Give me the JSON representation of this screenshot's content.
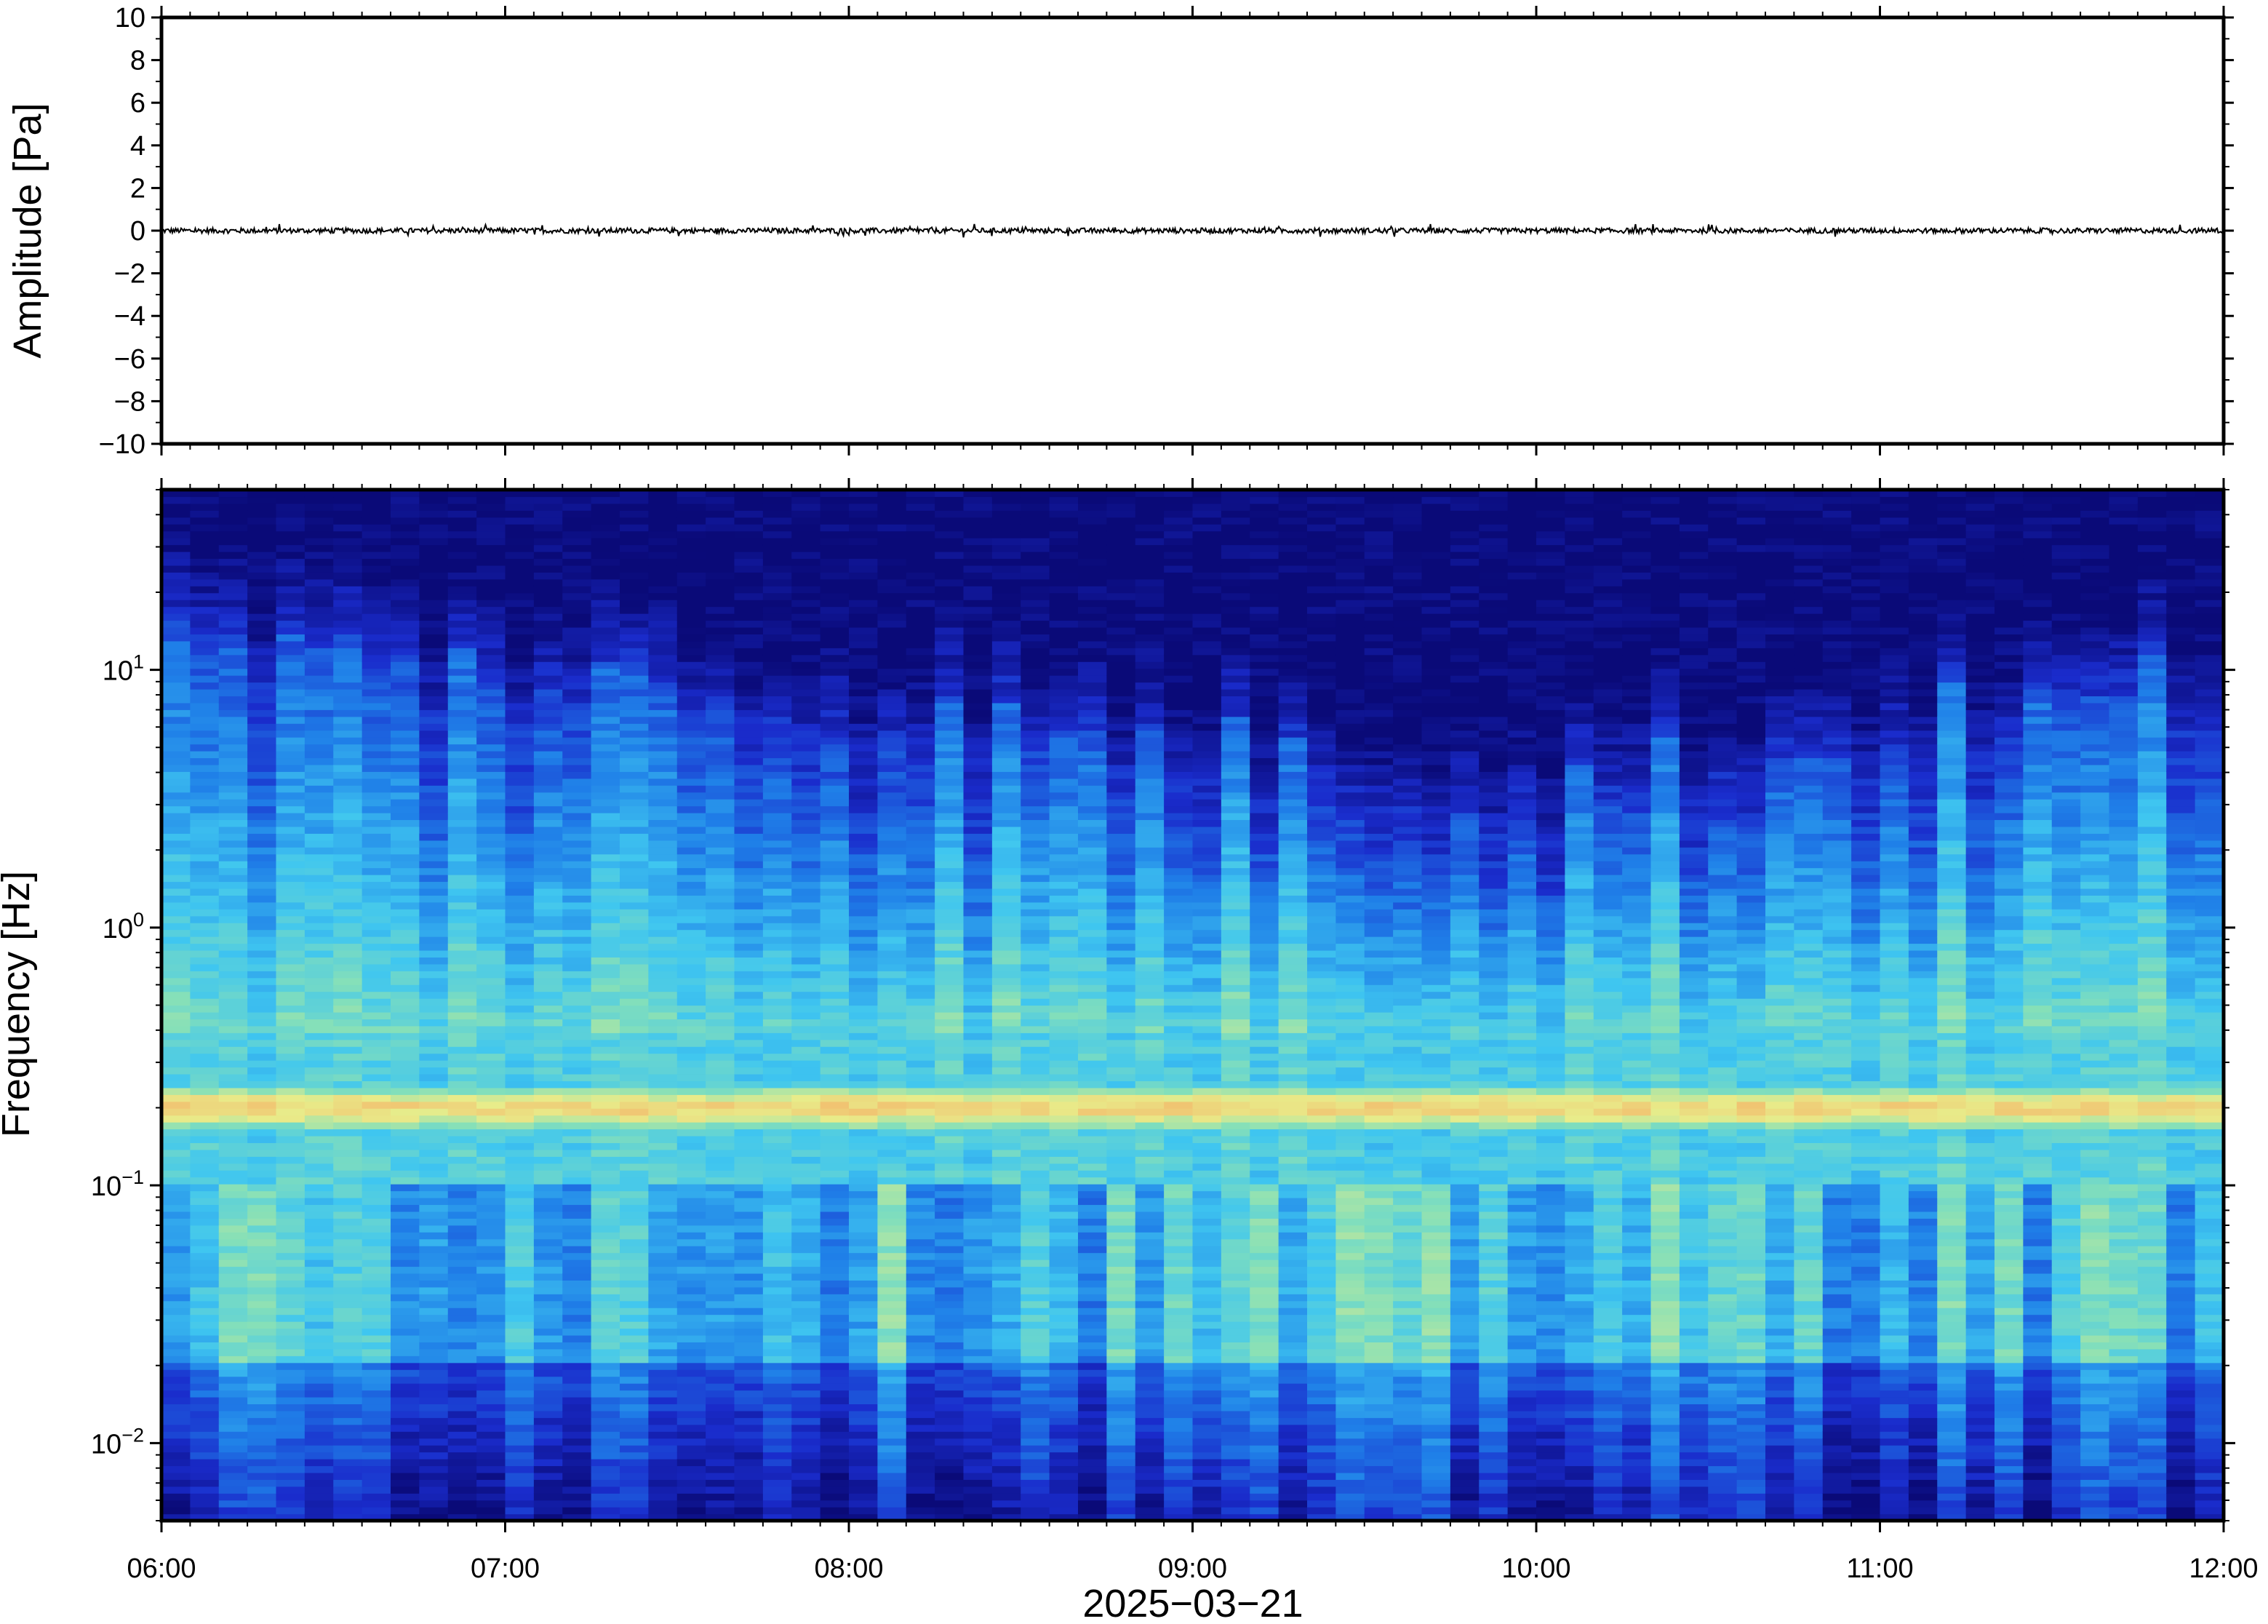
{
  "chart_data": [
    {
      "type": "line",
      "panel": "waveform",
      "ylabel": "Amplitude [Pa]",
      "ylim": [
        -10,
        10
      ],
      "yticks": [
        10,
        8,
        6,
        4,
        2,
        0,
        -2,
        -4,
        -6,
        -8,
        -10
      ],
      "ytick_labels": [
        "10",
        "8",
        "6",
        "4",
        "2",
        "0",
        "−2",
        "−4",
        "−6",
        "−8",
        "−10"
      ],
      "xlim": [
        "06:00",
        "12:00"
      ],
      "series": [
        {
          "color": "#000000",
          "x": [
            "06:00",
            "12:00"
          ],
          "y": [
            0,
            0
          ],
          "note_amplitude_band": [
            -0.2,
            0.2
          ]
        }
      ]
    },
    {
      "type": "heatmap",
      "panel": "spectrogram",
      "ylabel": "Frequency [Hz]",
      "yscale": "log",
      "ylim": [
        0.005,
        50
      ],
      "yticks": [
        {
          "base": "10",
          "exp": "1",
          "value": 10
        },
        {
          "base": "10",
          "exp": "0",
          "value": 1
        },
        {
          "base": "10",
          "exp": "−1",
          "value": 0.1
        },
        {
          "base": "10",
          "exp": "−2",
          "value": 0.01
        }
      ],
      "x_tick_labels": [
        "06:00",
        "07:00",
        "08:00",
        "09:00",
        "10:00",
        "11:00",
        "12:00"
      ],
      "xlabel": "2025−03−21",
      "colormap": [
        "#0a0a78",
        "#1a2ccc",
        "#1f7fe8",
        "#3fc6f0",
        "#86e0b8",
        "#e8ec8a",
        "#f4b468"
      ],
      "dominant_band_hz": 0.2,
      "upper_cutoff_hz_start_mid_end": [
        12,
        3,
        8
      ]
    }
  ]
}
